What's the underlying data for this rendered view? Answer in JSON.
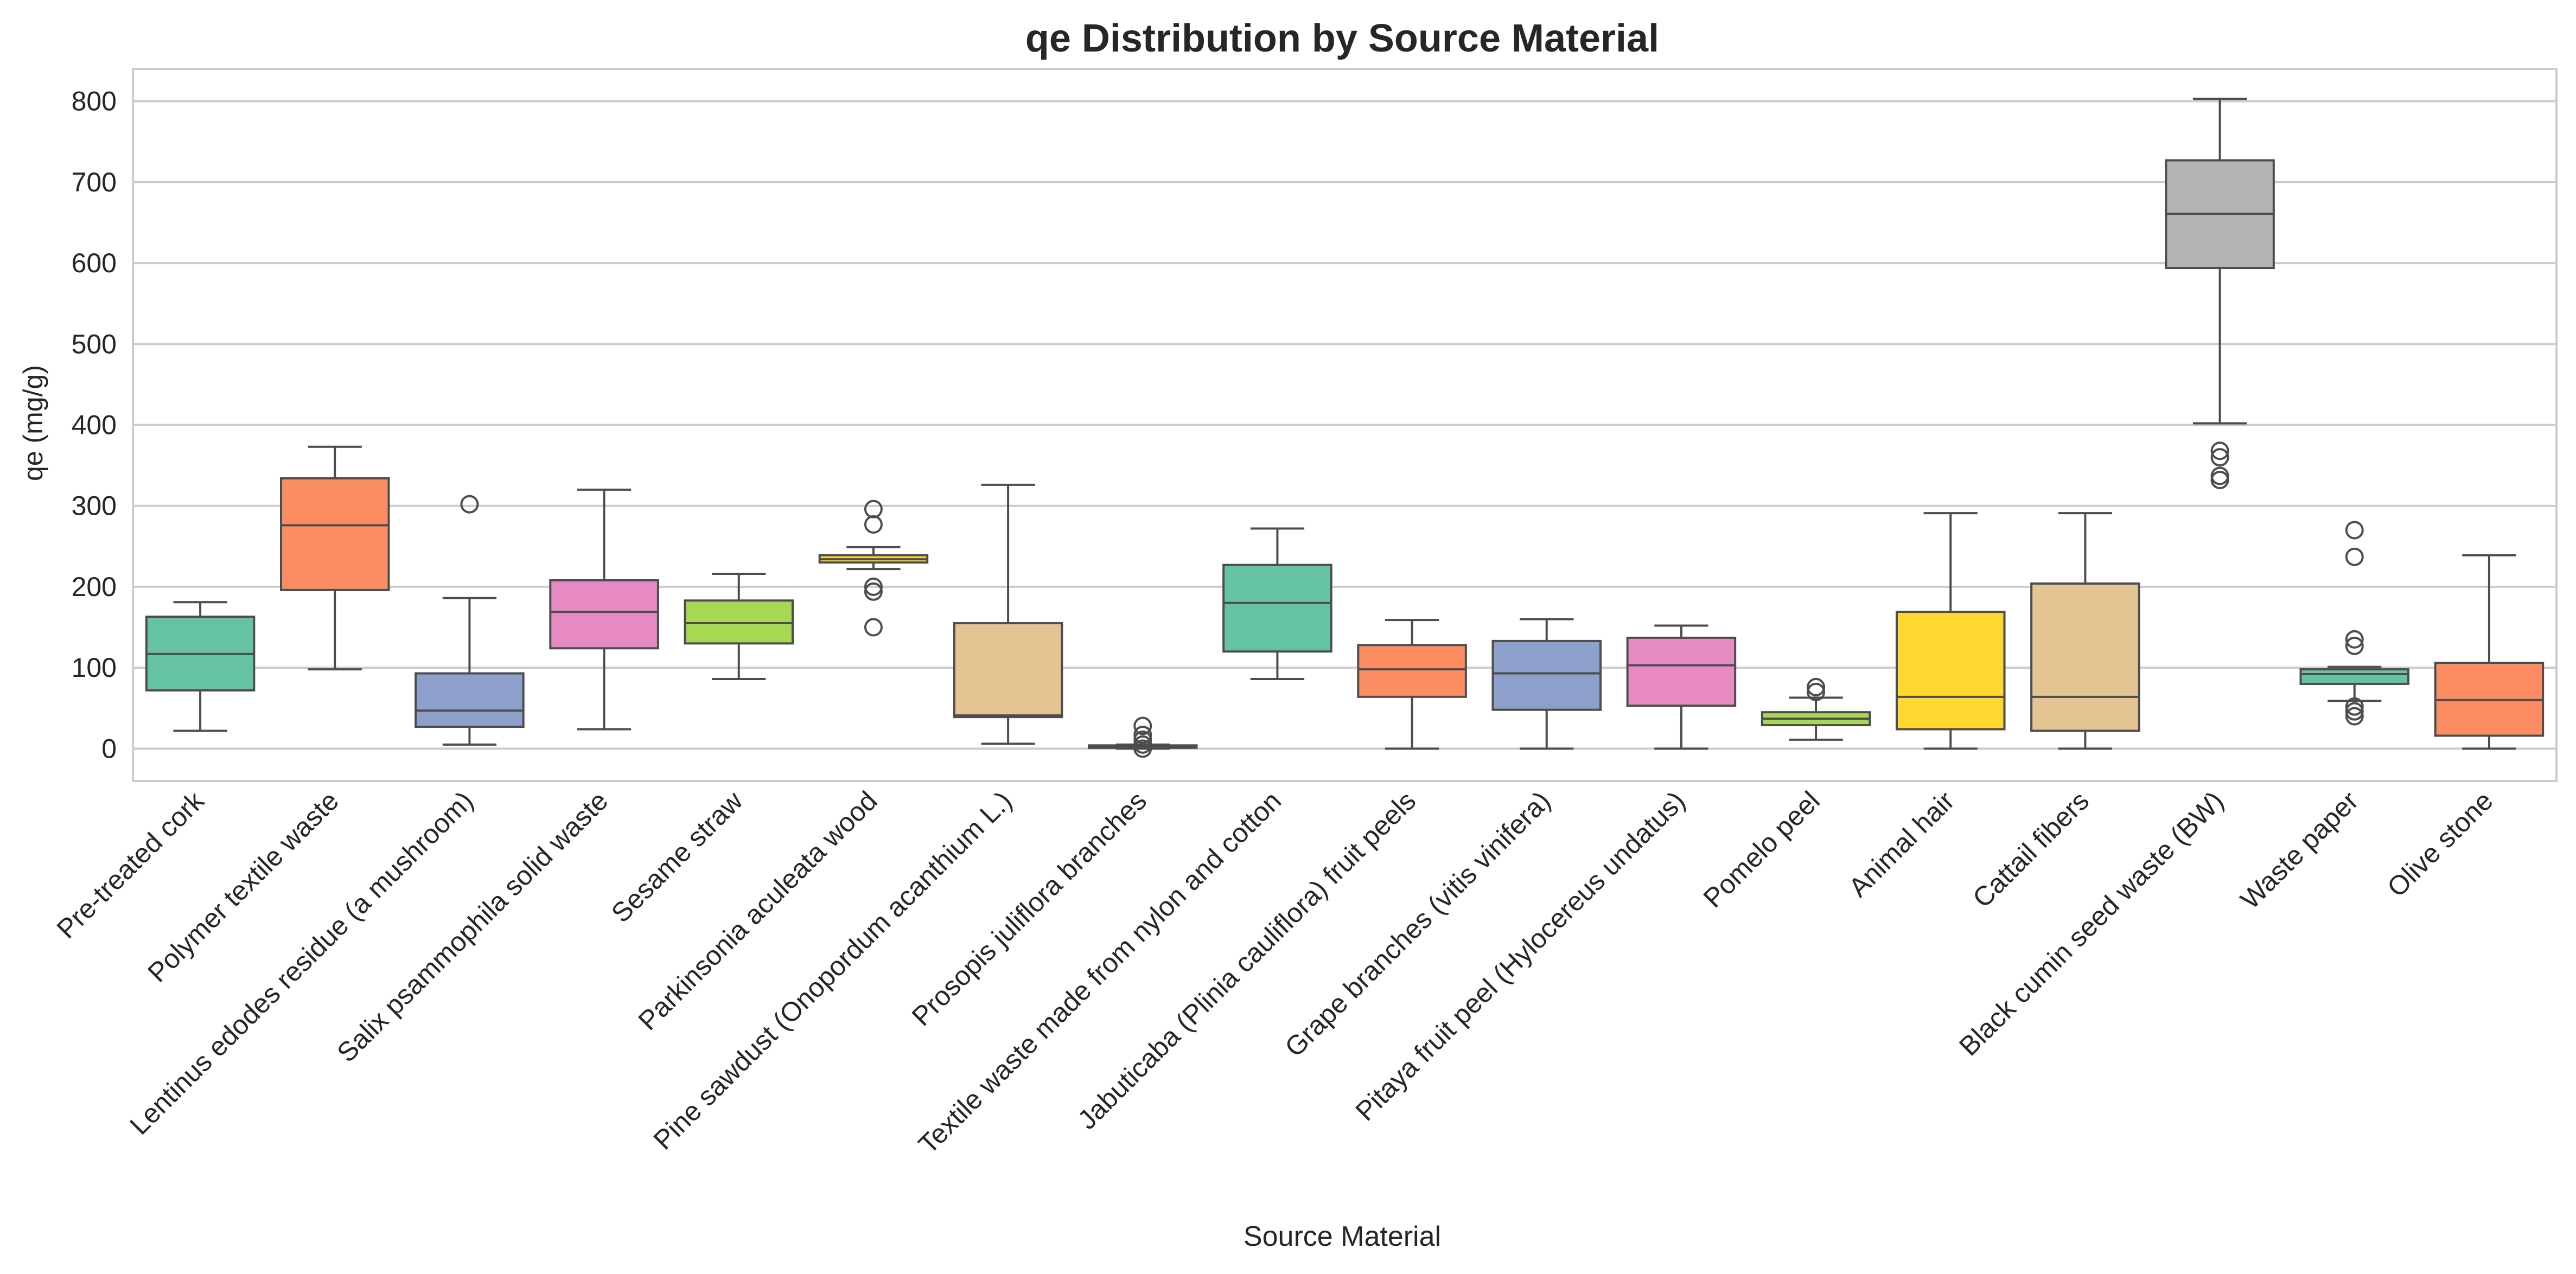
{
  "chart_data": {
    "type": "box",
    "title": "qe Distribution by Source Material",
    "xlabel": "Source Material",
    "ylabel": "qe (mg/g)",
    "ylim": [
      -40,
      840
    ],
    "yticks": [
      0,
      100,
      200,
      300,
      400,
      500,
      600,
      700,
      800
    ],
    "grid": true,
    "legend": "none",
    "categories": [
      "Pre-treated cork",
      "Polymer textile waste",
      "Lentinus edodes residue (a mushroom)",
      "Salix psammophila solid waste",
      "Sesame straw",
      "Parkinsonia aculeata wood",
      "Pine sawdust (Onopordum acanthium L.)",
      "Prosopis juliflora branches",
      "Textile waste made from nylon and cotton",
      "Jabuticaba (Plinia cauliflora) fruit peels",
      "Grape branches (vitis vinifera)",
      "Pitaya fruit peel (Hylocereus undatus)",
      "Pomelo peel",
      "Animal hair",
      "Cattail fibers",
      "Black cumin seed waste (BW)",
      "Waste paper",
      "Olive stone"
    ],
    "colors": [
      "#66c2a5",
      "#fc8d62",
      "#8da0cb",
      "#e78ac3",
      "#a6d854",
      "#ffd92f",
      "#e5c494",
      "#b3b3b3"
    ],
    "boxes": [
      {
        "whisker_low": 22,
        "q1": 72,
        "median": 117,
        "q3": 163,
        "whisker_high": 181,
        "outliers": []
      },
      {
        "whisker_low": 98,
        "q1": 196,
        "median": 276,
        "q3": 334,
        "whisker_high": 373,
        "outliers": []
      },
      {
        "whisker_low": 5,
        "q1": 27,
        "median": 47,
        "q3": 93,
        "whisker_high": 186,
        "outliers": [
          302
        ]
      },
      {
        "whisker_low": 24,
        "q1": 124,
        "median": 169,
        "q3": 208,
        "whisker_high": 320,
        "outliers": []
      },
      {
        "whisker_low": 86,
        "q1": 130,
        "median": 155,
        "q3": 183,
        "whisker_high": 216,
        "outliers": []
      },
      {
        "whisker_low": 222,
        "q1": 230,
        "median": 234,
        "q3": 239,
        "whisker_high": 249,
        "outliers": [
          296,
          277,
          200,
          194,
          150
        ]
      },
      {
        "whisker_low": 6,
        "q1": 39,
        "median": 41,
        "q3": 155,
        "whisker_high": 326,
        "outliers": []
      },
      {
        "whisker_low": 0,
        "q1": 1,
        "median": 2,
        "q3": 4,
        "whisker_high": 5,
        "outliers": [
          28,
          17,
          11,
          5,
          0
        ]
      },
      {
        "whisker_low": 86,
        "q1": 120,
        "median": 180,
        "q3": 227,
        "whisker_high": 272,
        "outliers": []
      },
      {
        "whisker_low": 0,
        "q1": 64,
        "median": 98,
        "q3": 128,
        "whisker_high": 159,
        "outliers": []
      },
      {
        "whisker_low": 0,
        "q1": 48,
        "median": 93,
        "q3": 133,
        "whisker_high": 160,
        "outliers": []
      },
      {
        "whisker_low": 0,
        "q1": 53,
        "median": 103,
        "q3": 137,
        "whisker_high": 152,
        "outliers": []
      },
      {
        "whisker_low": 11,
        "q1": 29,
        "median": 37,
        "q3": 45,
        "whisker_high": 63,
        "outliers": [
          76,
          70
        ]
      },
      {
        "whisker_low": 0,
        "q1": 24,
        "median": 64,
        "q3": 169,
        "whisker_high": 291,
        "outliers": []
      },
      {
        "whisker_low": 0,
        "q1": 22,
        "median": 64,
        "q3": 204,
        "whisker_high": 291,
        "outliers": []
      },
      {
        "whisker_low": 402,
        "q1": 594,
        "median": 661,
        "q3": 727,
        "whisker_high": 803,
        "outliers": [
          368,
          360,
          337,
          332
        ]
      },
      {
        "whisker_low": 59,
        "q1": 80,
        "median": 92,
        "q3": 98,
        "whisker_high": 101,
        "outliers": [
          270,
          237,
          135,
          127,
          52,
          46,
          40
        ]
      },
      {
        "whisker_low": 0,
        "q1": 16,
        "median": 60,
        "q3": 106,
        "whisker_high": 239,
        "outliers": []
      }
    ]
  }
}
